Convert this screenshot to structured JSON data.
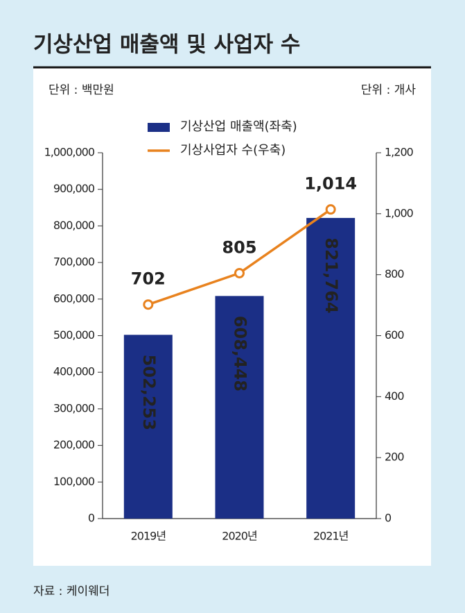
{
  "chart_data": {
    "type": "bar",
    "title": "기상산업 매출액 및 사업자 수",
    "unit_left": "단위 : 백만원",
    "unit_right": "단위 : 개사",
    "source": "자료 : 케이웨더",
    "categories": [
      "2019년",
      "2020년",
      "2021년"
    ],
    "series": [
      {
        "name": "기상산업 매출액(좌축)",
        "type": "bar",
        "color": "#1b2f86",
        "values": [
          502253,
          608448,
          821764
        ],
        "value_labels": [
          "502,253",
          "608,448",
          "821,764"
        ]
      },
      {
        "name": "기상사업자 수(우축)",
        "type": "line",
        "axis": "y2",
        "color": "#e8821e",
        "values": [
          702,
          805,
          1014
        ],
        "value_labels": [
          "702",
          "805",
          "1,014"
        ]
      }
    ],
    "ylim": [
      0,
      1000000
    ],
    "yticks": [
      0,
      {
        "value": 100000,
        "label": "100,000"
      },
      {
        "value": 200000,
        "label": "200,000"
      },
      {
        "value": 300000,
        "label": "300,000"
      },
      {
        "value": 400000,
        "label": "400,000"
      },
      {
        "value": 500000,
        "label": "500,000"
      },
      {
        "value": 600000,
        "label": "600,000"
      },
      {
        "value": 700000,
        "label": "700,000"
      },
      {
        "value": 800000,
        "label": "800,000"
      },
      {
        "value": 900000,
        "label": "900,000"
      },
      {
        "value": 1000000,
        "label": "1,000,000"
      }
    ],
    "y2lim": [
      0,
      1200
    ],
    "y2ticks": [
      0,
      200,
      400,
      600,
      800,
      {
        "value": 1000,
        "label": "1,000"
      },
      {
        "value": 1200,
        "label": "1,200"
      }
    ]
  }
}
